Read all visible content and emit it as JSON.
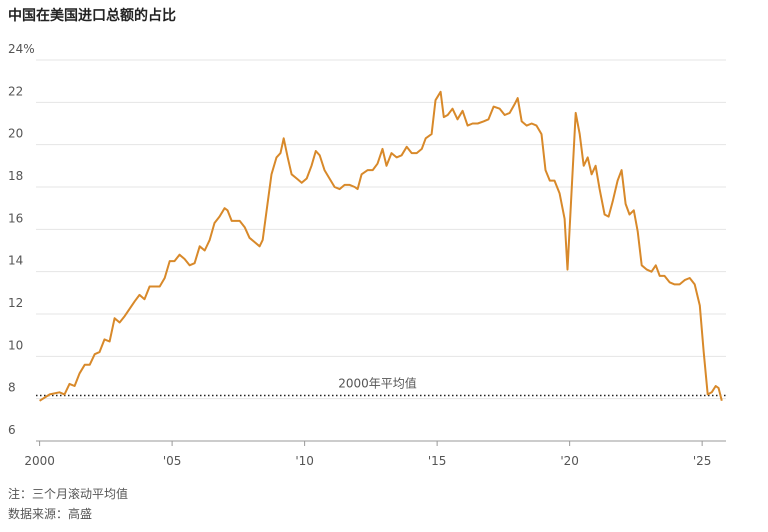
{
  "chart_data": {
    "type": "line",
    "title": "中国在美国进口总额的占比",
    "x": [
      2000.0,
      2000.38,
      2000.75,
      2000.94,
      2001.13,
      2001.32,
      2001.51,
      2001.7,
      2001.89,
      2002.08,
      2002.26,
      2002.45,
      2002.64,
      2002.83,
      2003.02,
      2003.21,
      2003.59,
      2003.77,
      2003.96,
      2004.15,
      2004.53,
      2004.72,
      2004.91,
      2005.09,
      2005.28,
      2005.47,
      2005.66,
      2005.85,
      2006.04,
      2006.23,
      2006.42,
      2006.6,
      2006.79,
      2006.98,
      2007.09,
      2007.25,
      2007.55,
      2007.74,
      2007.92,
      2008.11,
      2008.3,
      2008.42,
      2008.6,
      2008.75,
      2008.94,
      2009.09,
      2009.21,
      2009.36,
      2009.51,
      2009.7,
      2009.89,
      2010.08,
      2010.26,
      2010.42,
      2010.57,
      2010.75,
      2010.94,
      2011.13,
      2011.32,
      2011.51,
      2011.7,
      2011.89,
      2012.0,
      2012.15,
      2012.38,
      2012.57,
      2012.75,
      2012.94,
      2013.09,
      2013.28,
      2013.47,
      2013.66,
      2013.85,
      2014.04,
      2014.23,
      2014.42,
      2014.57,
      2014.79,
      2014.94,
      2015.13,
      2015.25,
      2015.4,
      2015.58,
      2015.77,
      2015.96,
      2016.15,
      2016.34,
      2016.53,
      2016.75,
      2016.94,
      2017.13,
      2017.36,
      2017.55,
      2017.74,
      2017.92,
      2018.04,
      2018.19,
      2018.38,
      2018.57,
      2018.75,
      2018.94,
      2019.09,
      2019.25,
      2019.43,
      2019.62,
      2019.81,
      2019.92,
      2020.08,
      2020.23,
      2020.38,
      2020.53,
      2020.68,
      2020.83,
      2020.98,
      2021.13,
      2021.32,
      2021.47,
      2021.62,
      2021.81,
      2021.96,
      2022.11,
      2022.26,
      2022.42,
      2022.57,
      2022.72,
      2022.91,
      2023.09,
      2023.25,
      2023.4,
      2023.58,
      2023.77,
      2023.96,
      2024.15,
      2024.34,
      2024.53,
      2024.72,
      2024.91,
      2025.06,
      2025.21,
      2025.36,
      2025.51,
      2025.62,
      2025.74
    ],
    "series": [
      {
        "color": "#d8892a",
        "values": [
          7.9,
          8.2,
          8.3,
          8.2,
          8.7,
          8.6,
          9.2,
          9.6,
          9.6,
          10.1,
          10.2,
          10.8,
          10.7,
          11.8,
          11.6,
          11.9,
          12.6,
          12.9,
          12.7,
          13.3,
          13.3,
          13.7,
          14.5,
          14.5,
          14.8,
          14.6,
          14.3,
          14.4,
          15.2,
          15.0,
          15.5,
          16.3,
          16.6,
          17.0,
          16.9,
          16.4,
          16.4,
          16.1,
          15.6,
          15.4,
          15.2,
          15.5,
          17.2,
          18.6,
          19.4,
          19.6,
          20.3,
          19.4,
          18.6,
          18.4,
          18.2,
          18.4,
          19.0,
          19.7,
          19.5,
          18.8,
          18.4,
          18.0,
          17.9,
          18.1,
          18.1,
          18.0,
          17.9,
          18.6,
          18.8,
          18.8,
          19.1,
          19.8,
          19.0,
          19.6,
          19.4,
          19.5,
          19.9,
          19.6,
          19.6,
          19.8,
          20.3,
          20.5,
          22.1,
          22.5,
          21.3,
          21.4,
          21.7,
          21.2,
          21.6,
          20.9,
          21.0,
          21.0,
          21.1,
          21.2,
          21.8,
          21.7,
          21.4,
          21.5,
          21.9,
          22.2,
          21.1,
          20.9,
          21.0,
          20.9,
          20.5,
          18.8,
          18.3,
          18.3,
          17.7,
          16.5,
          14.1,
          18.0,
          21.5,
          20.5,
          19.0,
          19.4,
          18.6,
          19.0,
          17.9,
          16.7,
          16.6,
          17.3,
          18.3,
          18.8,
          17.2,
          16.7,
          16.9,
          15.9,
          14.3,
          14.1,
          14.0,
          14.3,
          13.8,
          13.8,
          13.5,
          13.4,
          13.4,
          13.6,
          13.7,
          13.4,
          12.4,
          10.2,
          8.2,
          8.3,
          8.6,
          8.5,
          7.9
        ]
      }
    ],
    "xlim": [
      1999.6,
      2025.9
    ],
    "xticks": [
      2000,
      {
        "value": 2005,
        "label": "'05"
      },
      {
        "value": 2010,
        "label": "'10"
      },
      {
        "value": 2015,
        "label": "'15"
      },
      {
        "value": 2020,
        "label": "'20"
      },
      {
        "value": 2025,
        "label": "'25"
      }
    ],
    "ylim": [
      6,
      24
    ],
    "yticks": [
      6,
      8,
      10,
      12,
      14,
      16,
      18,
      20,
      22,
      {
        "value": 24,
        "label": "24%"
      }
    ],
    "grid": true,
    "reference_line": {
      "value": 8.15,
      "label": "2000年平均值"
    },
    "notes": [
      "注：三个月滚动平均值",
      "数据来源：高盛"
    ]
  }
}
